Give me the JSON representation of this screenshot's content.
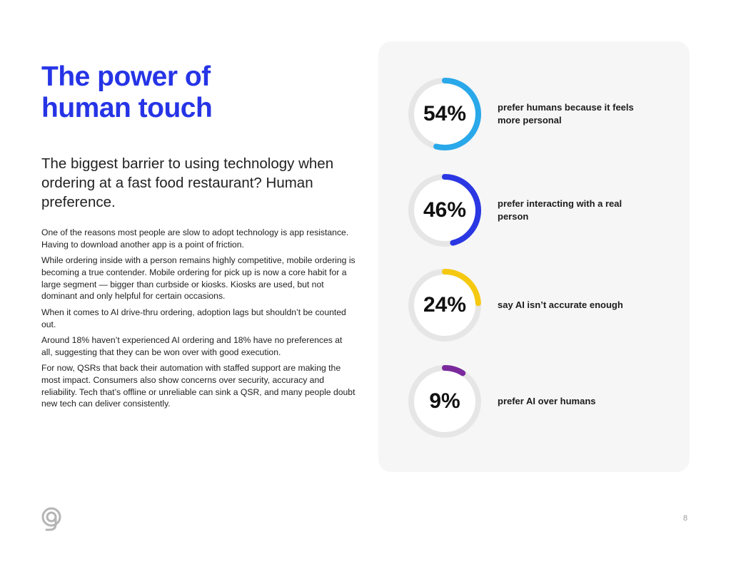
{
  "header": {
    "title_line1": "The power of",
    "title_line2": "human touch",
    "title_color": "#2634e6"
  },
  "subtitle": "The biggest barrier to using technology when ordering at a fast food restaurant? Human preference.",
  "paragraphs": [
    "One of the reasons most people are slow to adopt technology is app resistance. Having to download another app is a point of friction.",
    "While ordering inside with a person remains highly competitive, mobile ordering is becoming a true contender. Mobile ordering for pick up is now a core habit for a large segment — bigger than curbside or kiosks. Kiosks are used, but not dominant and only helpful for certain occasions.",
    "When it comes to AI drive-thru ordering, adoption lags but shouldn’t be counted out.",
    "Around 18% haven’t experienced AI ordering and 18% have no preferences at all, suggesting that they can be won over with good execution.",
    "For now, QSRs that back their automation with staffed support are making the most impact. Consumers also show concerns over security, accuracy and reliability. Tech that’s offline or unreliable can sink a QSR, and many people doubt new tech can deliver consistently."
  ],
  "stats": [
    {
      "value": 54,
      "label": "54%",
      "text": "prefer humans because it feels more personal",
      "color": "#29a8ea"
    },
    {
      "value": 46,
      "label": "46%",
      "text": "prefer interacting with a real person",
      "color": "#2a37e3"
    },
    {
      "value": 24,
      "label": "24%",
      "text": "say AI isn’t accurate enough",
      "color": "#f5c912"
    },
    {
      "value": 9,
      "label": "9%",
      "text": "prefer AI over humans",
      "color": "#7a2a9c"
    }
  ],
  "footer": {
    "logo_icon": "g-logo-icon",
    "page_number": "8"
  }
}
